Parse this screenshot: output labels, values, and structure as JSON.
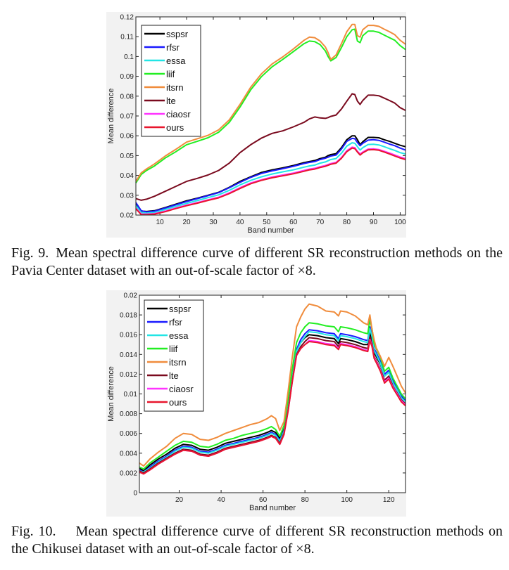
{
  "figures": [
    {
      "id": "fig9",
      "caption_label": "Fig. 9.",
      "caption_text": "Mean spectral difference curve of different SR reconstruction methods on the Pavia Center dataset with an out-of-scale factor of ×8."
    },
    {
      "id": "fig10",
      "caption_label": "Fig. 10.",
      "caption_text": "Mean spectral difference curve of different SR reconstruction methods on the Chikusei dataset with an out-of-scale factor of ×8."
    }
  ],
  "colors": {
    "sspsr": "#000000",
    "rfsr": "#1a1aff",
    "essa": "#22e5e5",
    "liif": "#22ee22",
    "itsrn": "#f08c3c",
    "lte": "#7a0a1e",
    "ciaosr": "#ff33ff",
    "ours": "#e8162d"
  },
  "chart_data": [
    {
      "type": "line",
      "title": "",
      "xlabel": "Band number",
      "ylabel": "Mean difference",
      "xlim": [
        1,
        102
      ],
      "ylim": [
        0.02,
        0.12
      ],
      "xticks": [
        10,
        20,
        30,
        40,
        50,
        60,
        70,
        80,
        90,
        100
      ],
      "xtick_labels": [
        "10",
        "20",
        "30",
        "40",
        "50",
        "60",
        "70",
        "80",
        "90",
        "100"
      ],
      "yticks": [
        0.02,
        0.03,
        0.04,
        0.05,
        0.06,
        0.07,
        0.08,
        0.09,
        0.1,
        0.11,
        0.12
      ],
      "ytick_labels": [
        "0.02",
        "0.03",
        "0.04",
        "0.05",
        "0.06",
        "0.07",
        "0.08",
        "0.09",
        "0.1",
        "0.11",
        "0.12"
      ],
      "legend": "top-left",
      "legend_order": [
        "sspsr",
        "rfsr",
        "essa",
        "liif",
        "itsrn",
        "lte",
        "ciaosr",
        "ours"
      ],
      "x": [
        1,
        3,
        5,
        8,
        12,
        16,
        20,
        24,
        28,
        32,
        36,
        40,
        44,
        48,
        52,
        56,
        60,
        64,
        66,
        68,
        70,
        72,
        73,
        74,
        76,
        78,
        80,
        82,
        83,
        84,
        85,
        86,
        88,
        90,
        92,
        94,
        96,
        98,
        100,
        102
      ],
      "series": [
        {
          "name": "sspsr",
          "values": [
            0.0255,
            0.022,
            0.0218,
            0.0222,
            0.0238,
            0.0255,
            0.0272,
            0.0285,
            0.03,
            0.0315,
            0.034,
            0.037,
            0.0393,
            0.0415,
            0.0428,
            0.0438,
            0.045,
            0.0465,
            0.047,
            0.0475,
            0.0485,
            0.0492,
            0.05,
            0.0505,
            0.051,
            0.054,
            0.058,
            0.06,
            0.06,
            0.058,
            0.0555,
            0.057,
            0.0592,
            0.0592,
            0.059,
            0.058,
            0.0572,
            0.0562,
            0.0552,
            0.0545
          ]
        },
        {
          "name": "rfsr",
          "values": [
            0.0263,
            0.0222,
            0.0216,
            0.022,
            0.0235,
            0.0252,
            0.0268,
            0.0283,
            0.0298,
            0.0313,
            0.0338,
            0.0365,
            0.039,
            0.041,
            0.0423,
            0.0434,
            0.0446,
            0.046,
            0.0466,
            0.047,
            0.048,
            0.0487,
            0.0492,
            0.0498,
            0.0503,
            0.0533,
            0.0572,
            0.0587,
            0.0585,
            0.0566,
            0.055,
            0.0562,
            0.0578,
            0.058,
            0.0577,
            0.0568,
            0.0558,
            0.055,
            0.0538,
            0.0528
          ]
        },
        {
          "name": "essa",
          "values": [
            0.0248,
            0.0212,
            0.021,
            0.0213,
            0.0228,
            0.0244,
            0.0259,
            0.0273,
            0.0288,
            0.0302,
            0.0325,
            0.0352,
            0.0375,
            0.0393,
            0.0407,
            0.0418,
            0.0428,
            0.0442,
            0.0448,
            0.0452,
            0.0462,
            0.0468,
            0.0474,
            0.048,
            0.0485,
            0.0512,
            0.0548,
            0.0565,
            0.0562,
            0.0545,
            0.0528,
            0.054,
            0.0556,
            0.0557,
            0.0554,
            0.0545,
            0.0535,
            0.0526,
            0.0515,
            0.0508
          ]
        },
        {
          "name": "liif",
          "values": [
            0.0362,
            0.0405,
            0.0425,
            0.0448,
            0.0488,
            0.052,
            0.0555,
            0.0572,
            0.059,
            0.0618,
            0.0668,
            0.0745,
            0.0832,
            0.0898,
            0.0948,
            0.0985,
            0.1025,
            0.1065,
            0.1078,
            0.1075,
            0.106,
            0.1028,
            0.1,
            0.0978,
            0.0995,
            0.1045,
            0.11,
            0.1135,
            0.1138,
            0.1078,
            0.107,
            0.1105,
            0.1128,
            0.1128,
            0.1122,
            0.1108,
            0.1095,
            0.1082,
            0.1055,
            0.1035
          ]
        },
        {
          "name": "itsrn",
          "values": [
            0.037,
            0.0413,
            0.0433,
            0.0458,
            0.0498,
            0.0532,
            0.0568,
            0.0585,
            0.0602,
            0.063,
            0.068,
            0.0758,
            0.0845,
            0.0912,
            0.0962,
            0.0998,
            0.1038,
            0.1082,
            0.1098,
            0.1095,
            0.1078,
            0.1048,
            0.102,
            0.0985,
            0.1008,
            0.1065,
            0.1125,
            0.1162,
            0.1162,
            0.1105,
            0.1098,
            0.1135,
            0.1157,
            0.1157,
            0.1152,
            0.1138,
            0.1125,
            0.111,
            0.1082,
            0.1062
          ]
        },
        {
          "name": "lte",
          "values": [
            0.0283,
            0.0275,
            0.028,
            0.0295,
            0.032,
            0.0345,
            0.037,
            0.0385,
            0.0402,
            0.0425,
            0.0462,
            0.0515,
            0.0555,
            0.0588,
            0.0612,
            0.0625,
            0.0645,
            0.0668,
            0.0685,
            0.0695,
            0.069,
            0.0688,
            0.0692,
            0.0698,
            0.0705,
            0.0735,
            0.0775,
            0.0812,
            0.0808,
            0.0775,
            0.0758,
            0.0778,
            0.0805,
            0.0805,
            0.0802,
            0.079,
            0.0778,
            0.0765,
            0.0742,
            0.0728
          ]
        },
        {
          "name": "ciaosr",
          "values": [
            0.0235,
            0.0205,
            0.0205,
            0.0207,
            0.022,
            0.0236,
            0.025,
            0.0263,
            0.0277,
            0.029,
            0.0312,
            0.0338,
            0.0362,
            0.0378,
            0.0392,
            0.0402,
            0.0412,
            0.0425,
            0.0432,
            0.0436,
            0.0444,
            0.045,
            0.0455,
            0.046,
            0.0466,
            0.049,
            0.0525,
            0.0543,
            0.054,
            0.0522,
            0.0508,
            0.0518,
            0.0533,
            0.0534,
            0.0531,
            0.0522,
            0.0513,
            0.0503,
            0.0493,
            0.0485
          ]
        },
        {
          "name": "ours",
          "values": [
            0.0232,
            0.0202,
            0.0202,
            0.0205,
            0.0217,
            0.0233,
            0.0247,
            0.026,
            0.0274,
            0.0287,
            0.0308,
            0.0334,
            0.0358,
            0.0375,
            0.0388,
            0.0398,
            0.0408,
            0.0421,
            0.0428,
            0.0432,
            0.044,
            0.0446,
            0.0451,
            0.0456,
            0.0462,
            0.0486,
            0.052,
            0.0538,
            0.0535,
            0.0518,
            0.0503,
            0.0514,
            0.0529,
            0.053,
            0.0527,
            0.0518,
            0.0508,
            0.0498,
            0.0488,
            0.048
          ]
        }
      ]
    },
    {
      "type": "line",
      "title": "",
      "xlabel": "Band number",
      "ylabel": "Mean difference",
      "xlim": [
        1,
        128
      ],
      "ylim": [
        0,
        0.02
      ],
      "xticks": [
        20,
        40,
        60,
        80,
        100,
        120
      ],
      "xtick_labels": [
        "20",
        "40",
        "60",
        "80",
        "100",
        "120"
      ],
      "yticks": [
        0,
        0.002,
        0.004,
        0.006,
        0.008,
        0.01,
        0.012,
        0.014,
        0.016,
        0.018,
        0.02
      ],
      "ytick_labels": [
        "0",
        "0.002",
        "0.004",
        "0.006",
        "0.008",
        "0.01",
        "0.012",
        "0.014",
        "0.016",
        "0.018",
        "0.02"
      ],
      "legend": "top-left",
      "legend_order": [
        "sspsr",
        "rfsr",
        "essa",
        "liif",
        "itsrn",
        "lte",
        "ciaosr",
        "ours"
      ],
      "x": [
        1,
        3,
        6,
        10,
        14,
        18,
        22,
        26,
        30,
        34,
        38,
        42,
        46,
        50,
        54,
        58,
        62,
        64,
        66,
        68,
        70,
        72,
        74,
        76,
        78,
        80,
        82,
        86,
        90,
        94,
        96,
        97,
        100,
        104,
        108,
        110,
        111,
        112,
        113,
        114,
        116,
        118,
        120,
        122,
        124,
        126,
        128
      ],
      "series": [
        {
          "name": "sspsr",
          "values": [
            0.0025,
            0.0022,
            0.0028,
            0.0034,
            0.0039,
            0.0045,
            0.0049,
            0.0048,
            0.0044,
            0.0043,
            0.0046,
            0.005,
            0.0052,
            0.0054,
            0.0056,
            0.0058,
            0.0061,
            0.0063,
            0.0061,
            0.0055,
            0.0065,
            0.009,
            0.012,
            0.0145,
            0.0152,
            0.0157,
            0.016,
            0.0159,
            0.0157,
            0.0156,
            0.0151,
            0.0156,
            0.0155,
            0.0153,
            0.015,
            0.015,
            0.0162,
            0.0155,
            0.0142,
            0.0138,
            0.013,
            0.0118,
            0.0122,
            0.0112,
            0.0105,
            0.0098,
            0.0093
          ]
        },
        {
          "name": "rfsr",
          "values": [
            0.0023,
            0.0021,
            0.0026,
            0.0032,
            0.0037,
            0.0043,
            0.0047,
            0.0046,
            0.0042,
            0.0041,
            0.0044,
            0.0048,
            0.005,
            0.0052,
            0.0054,
            0.0056,
            0.0059,
            0.0061,
            0.0059,
            0.0053,
            0.0063,
            0.0088,
            0.0118,
            0.0145,
            0.0155,
            0.0161,
            0.0165,
            0.0164,
            0.0162,
            0.0161,
            0.0156,
            0.0161,
            0.016,
            0.0158,
            0.0155,
            0.0154,
            0.0168,
            0.016,
            0.0146,
            0.0142,
            0.0133,
            0.012,
            0.0124,
            0.0113,
            0.0106,
            0.0098,
            0.0094
          ]
        },
        {
          "name": "essa",
          "values": [
            0.0022,
            0.0021,
            0.0025,
            0.0031,
            0.0036,
            0.0042,
            0.0046,
            0.0045,
            0.0041,
            0.004,
            0.0043,
            0.0047,
            0.0049,
            0.0051,
            0.0053,
            0.0055,
            0.0058,
            0.006,
            0.0058,
            0.0052,
            0.0062,
            0.0087,
            0.0117,
            0.0143,
            0.0152,
            0.0158,
            0.0163,
            0.0162,
            0.016,
            0.0159,
            0.0154,
            0.0159,
            0.0158,
            0.0156,
            0.0153,
            0.0152,
            0.0166,
            0.0158,
            0.0144,
            0.014,
            0.0131,
            0.0118,
            0.0122,
            0.0111,
            0.0104,
            0.0096,
            0.0092
          ]
        },
        {
          "name": "liif",
          "values": [
            0.0026,
            0.0024,
            0.003,
            0.0036,
            0.0042,
            0.0048,
            0.0052,
            0.0051,
            0.0047,
            0.0046,
            0.0049,
            0.0053,
            0.0055,
            0.0058,
            0.006,
            0.0062,
            0.0065,
            0.0067,
            0.0064,
            0.0057,
            0.0068,
            0.0095,
            0.0126,
            0.0152,
            0.0162,
            0.0168,
            0.0172,
            0.0171,
            0.0169,
            0.0168,
            0.0163,
            0.0168,
            0.0167,
            0.0165,
            0.0162,
            0.0161,
            0.0175,
            0.0166,
            0.0151,
            0.0146,
            0.0137,
            0.0123,
            0.0127,
            0.0116,
            0.0108,
            0.01,
            0.0095
          ]
        },
        {
          "name": "itsrn",
          "values": [
            0.003,
            0.0027,
            0.0034,
            0.0041,
            0.0047,
            0.0055,
            0.006,
            0.0059,
            0.0054,
            0.0053,
            0.0056,
            0.006,
            0.0063,
            0.0066,
            0.0069,
            0.0071,
            0.0075,
            0.0078,
            0.0075,
            0.0063,
            0.0072,
            0.0103,
            0.0138,
            0.0168,
            0.0178,
            0.0186,
            0.0191,
            0.0189,
            0.0184,
            0.0183,
            0.0179,
            0.0184,
            0.0183,
            0.0179,
            0.0172,
            0.017,
            0.018,
            0.0165,
            0.0155,
            0.0147,
            0.0138,
            0.0128,
            0.0137,
            0.0128,
            0.0118,
            0.0108,
            0.0101
          ]
        },
        {
          "name": "lte",
          "values": [
            0.0022,
            0.002,
            0.0024,
            0.003,
            0.0035,
            0.004,
            0.0044,
            0.0043,
            0.0039,
            0.0038,
            0.0041,
            0.0045,
            0.0047,
            0.0049,
            0.0051,
            0.0053,
            0.0056,
            0.0058,
            0.0056,
            0.005,
            0.006,
            0.0084,
            0.0114,
            0.014,
            0.0148,
            0.0153,
            0.0157,
            0.0156,
            0.0154,
            0.0153,
            0.0148,
            0.0153,
            0.0152,
            0.015,
            0.0147,
            0.0146,
            0.0158,
            0.0151,
            0.0138,
            0.0134,
            0.0125,
            0.0114,
            0.0118,
            0.0108,
            0.0101,
            0.0094,
            0.009
          ]
        },
        {
          "name": "ciaosr",
          "values": [
            0.0021,
            0.0019,
            0.0023,
            0.0029,
            0.0034,
            0.0039,
            0.0043,
            0.0042,
            0.0038,
            0.0037,
            0.004,
            0.0044,
            0.0046,
            0.0048,
            0.005,
            0.0052,
            0.0055,
            0.0057,
            0.0055,
            0.0049,
            0.0059,
            0.0083,
            0.0113,
            0.0139,
            0.0146,
            0.015,
            0.0154,
            0.0153,
            0.0151,
            0.015,
            0.0146,
            0.0151,
            0.015,
            0.0148,
            0.0145,
            0.0144,
            0.0155,
            0.0149,
            0.0137,
            0.0133,
            0.0124,
            0.0112,
            0.0116,
            0.0107,
            0.01,
            0.0093,
            0.0089
          ]
        },
        {
          "name": "ours",
          "values": [
            0.0021,
            0.0019,
            0.0023,
            0.0029,
            0.0034,
            0.0039,
            0.0043,
            0.0042,
            0.0038,
            0.0037,
            0.004,
            0.0044,
            0.0046,
            0.0048,
            0.005,
            0.0052,
            0.0055,
            0.0057,
            0.0055,
            0.0049,
            0.0059,
            0.0083,
            0.0113,
            0.0139,
            0.0146,
            0.015,
            0.0153,
            0.0152,
            0.015,
            0.0149,
            0.0145,
            0.015,
            0.0149,
            0.0147,
            0.0144,
            0.0143,
            0.0154,
            0.0148,
            0.0136,
            0.0132,
            0.0123,
            0.0111,
            0.0115,
            0.0106,
            0.0099,
            0.0092,
            0.0088
          ]
        }
      ]
    }
  ]
}
